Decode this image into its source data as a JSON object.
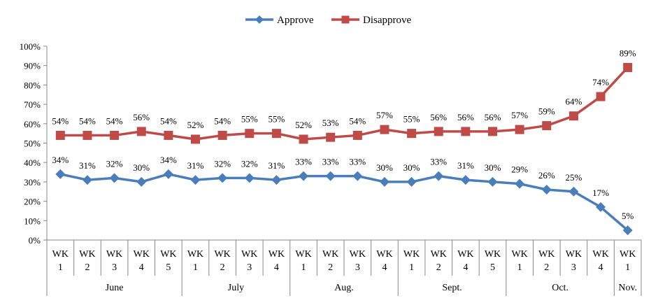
{
  "chart_data": {
    "type": "line",
    "title": "",
    "xlabel": "",
    "ylabel": "",
    "ylim": [
      0,
      100
    ],
    "y_ticks": [
      "0%",
      "10%",
      "20%",
      "30%",
      "40%",
      "50%",
      "60%",
      "70%",
      "80%",
      "90%",
      "100%"
    ],
    "grid": false,
    "legend_position": "top-center",
    "categories": [
      {
        "wk": "WK",
        "num": "1"
      },
      {
        "wk": "WK",
        "num": "2"
      },
      {
        "wk": "WK",
        "num": "3"
      },
      {
        "wk": "WK",
        "num": "4"
      },
      {
        "wk": "WK",
        "num": "5"
      },
      {
        "wk": "WK",
        "num": "1"
      },
      {
        "wk": "WK",
        "num": "2"
      },
      {
        "wk": "WK",
        "num": "3"
      },
      {
        "wk": "WK",
        "num": "4"
      },
      {
        "wk": "WK",
        "num": "1"
      },
      {
        "wk": "WK",
        "num": "2"
      },
      {
        "wk": "WK",
        "num": "3"
      },
      {
        "wk": "WK",
        "num": "4"
      },
      {
        "wk": "WK",
        "num": "1"
      },
      {
        "wk": "WK",
        "num": "2"
      },
      {
        "wk": "WK",
        "num": "4"
      },
      {
        "wk": "WK",
        "num": "5"
      },
      {
        "wk": "WK",
        "num": "1"
      },
      {
        "wk": "WK",
        "num": "2"
      },
      {
        "wk": "WK",
        "num": "3"
      },
      {
        "wk": "WK",
        "num": "4"
      },
      {
        "wk": "WK",
        "num": "1"
      }
    ],
    "groups": [
      {
        "label": "June",
        "count": 5
      },
      {
        "label": "July",
        "count": 4
      },
      {
        "label": "Aug.",
        "count": 4
      },
      {
        "label": "Sept.",
        "count": 4
      },
      {
        "label": "Oct.",
        "count": 4
      },
      {
        "label": "Nov.",
        "count": 1
      }
    ],
    "series": [
      {
        "name": "Approve",
        "color": "#4a7ebb",
        "marker": "diamond",
        "values": [
          34,
          31,
          32,
          30,
          34,
          31,
          32,
          32,
          31,
          33,
          33,
          33,
          30,
          30,
          33,
          31,
          30,
          29,
          26,
          25,
          17,
          5
        ],
        "labels": [
          "34%",
          "31%",
          "32%",
          "30%",
          "34%",
          "31%",
          "32%",
          "32%",
          "31%",
          "33%",
          "33%",
          "33%",
          "30%",
          "30%",
          "33%",
          "31%",
          "30%",
          "29%",
          "26%",
          "25%",
          "17%",
          "5%"
        ]
      },
      {
        "name": "Disapprove",
        "color": "#be4b48",
        "marker": "square",
        "values": [
          54,
          54,
          54,
          56,
          54,
          52,
          54,
          55,
          55,
          52,
          53,
          54,
          57,
          55,
          56,
          56,
          56,
          57,
          59,
          64,
          74,
          89
        ],
        "labels": [
          "54%",
          "54%",
          "54%",
          "56%",
          "54%",
          "52%",
          "54%",
          "55%",
          "55%",
          "52%",
          "53%",
          "54%",
          "57%",
          "55%",
          "56%",
          "56%",
          "56%",
          "57%",
          "59%",
          "64%",
          "74%",
          "89%"
        ]
      }
    ]
  }
}
